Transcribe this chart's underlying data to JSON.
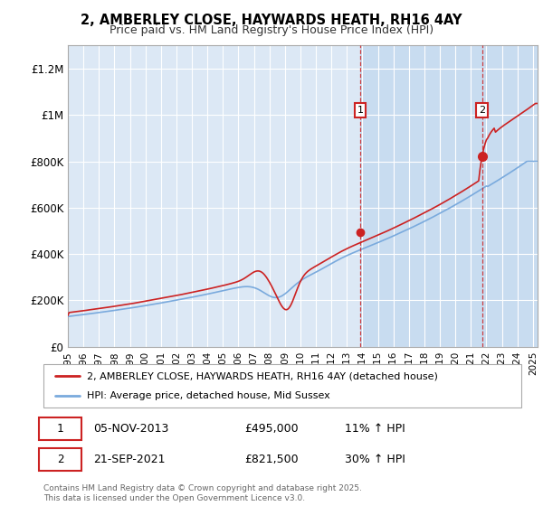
{
  "title": "2, AMBERLEY CLOSE, HAYWARDS HEATH, RH16 4AY",
  "subtitle": "Price paid vs. HM Land Registry's House Price Index (HPI)",
  "background_color": "#ffffff",
  "plot_bg_color": "#dce8f5",
  "plot_bg_color_right": "#c8dcf0",
  "grid_color": "#ffffff",
  "red_color": "#cc2222",
  "blue_color": "#7aaadd",
  "marker1_x": 2013.85,
  "marker1_y": 495000,
  "marker2_x": 2021.72,
  "marker2_y": 821500,
  "marker1_date": "05-NOV-2013",
  "marker1_price": "£495,000",
  "marker1_hpi": "11% ↑ HPI",
  "marker2_date": "21-SEP-2021",
  "marker2_price": "£821,500",
  "marker2_hpi": "30% ↑ HPI",
  "legend_line1": "2, AMBERLEY CLOSE, HAYWARDS HEATH, RH16 4AY (detached house)",
  "legend_line2": "HPI: Average price, detached house, Mid Sussex",
  "footnote": "Contains HM Land Registry data © Crown copyright and database right 2025.\nThis data is licensed under the Open Government Licence v3.0.",
  "xmin": 1995,
  "xmax": 2025.3,
  "ylim": [
    0,
    1300000
  ],
  "yticks": [
    0,
    200000,
    400000,
    600000,
    800000,
    1000000,
    1200000
  ],
  "ytick_labels": [
    "£0",
    "£200K",
    "£400K",
    "£600K",
    "£800K",
    "£1M",
    "£1.2M"
  ]
}
